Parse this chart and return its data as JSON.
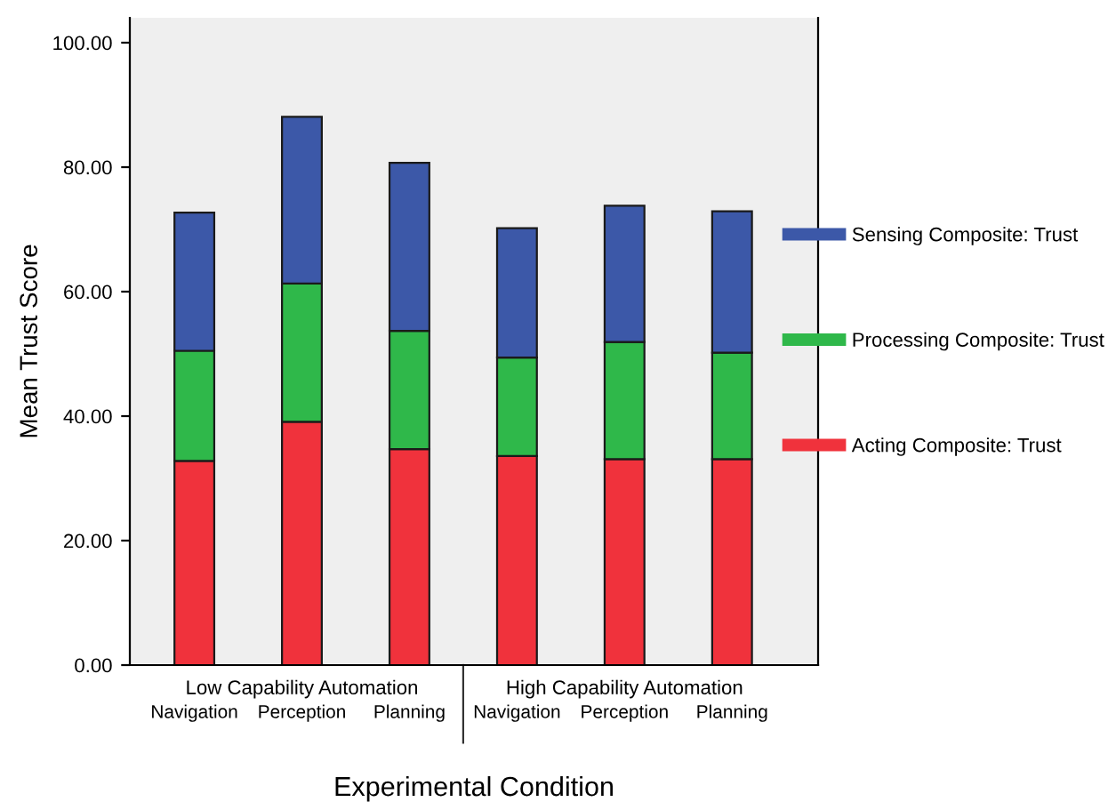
{
  "chart_data": {
    "type": "bar",
    "stacked": true,
    "xlabel": "Experimental Condition",
    "ylabel": "Mean Trust Score",
    "categories": [
      "Navigation",
      "Perception",
      "Planning",
      "Navigation",
      "Perception",
      "Planning"
    ],
    "annotations": [
      "Low Capability Automation",
      "High Capability Automation"
    ],
    "series": [
      {
        "name": "Acting Composite: Trust",
        "color": "#f0323c",
        "values": [
          32.8,
          39.1,
          34.7,
          33.6,
          33.1,
          33.1
        ]
      },
      {
        "name": "Processing Composite: Trust",
        "color": "#2fb84a",
        "values": [
          17.7,
          22.2,
          19.0,
          15.8,
          18.8,
          17.1
        ]
      },
      {
        "name": "Sensing Composite: Trust",
        "color": "#3c58a8",
        "values": [
          22.2,
          26.8,
          27.0,
          20.8,
          21.9,
          22.7
        ]
      }
    ],
    "ylim": [
      0,
      104
    ],
    "yticks": [
      {
        "value": 0,
        "label": "0.00"
      },
      {
        "value": 20,
        "label": "20.00"
      },
      {
        "value": 40,
        "label": "40.00"
      },
      {
        "value": 60,
        "label": "60.00"
      },
      {
        "value": 80,
        "label": "80.00"
      },
      {
        "value": 100,
        "label": "100.00"
      }
    ],
    "grid": false,
    "legend": "right"
  }
}
